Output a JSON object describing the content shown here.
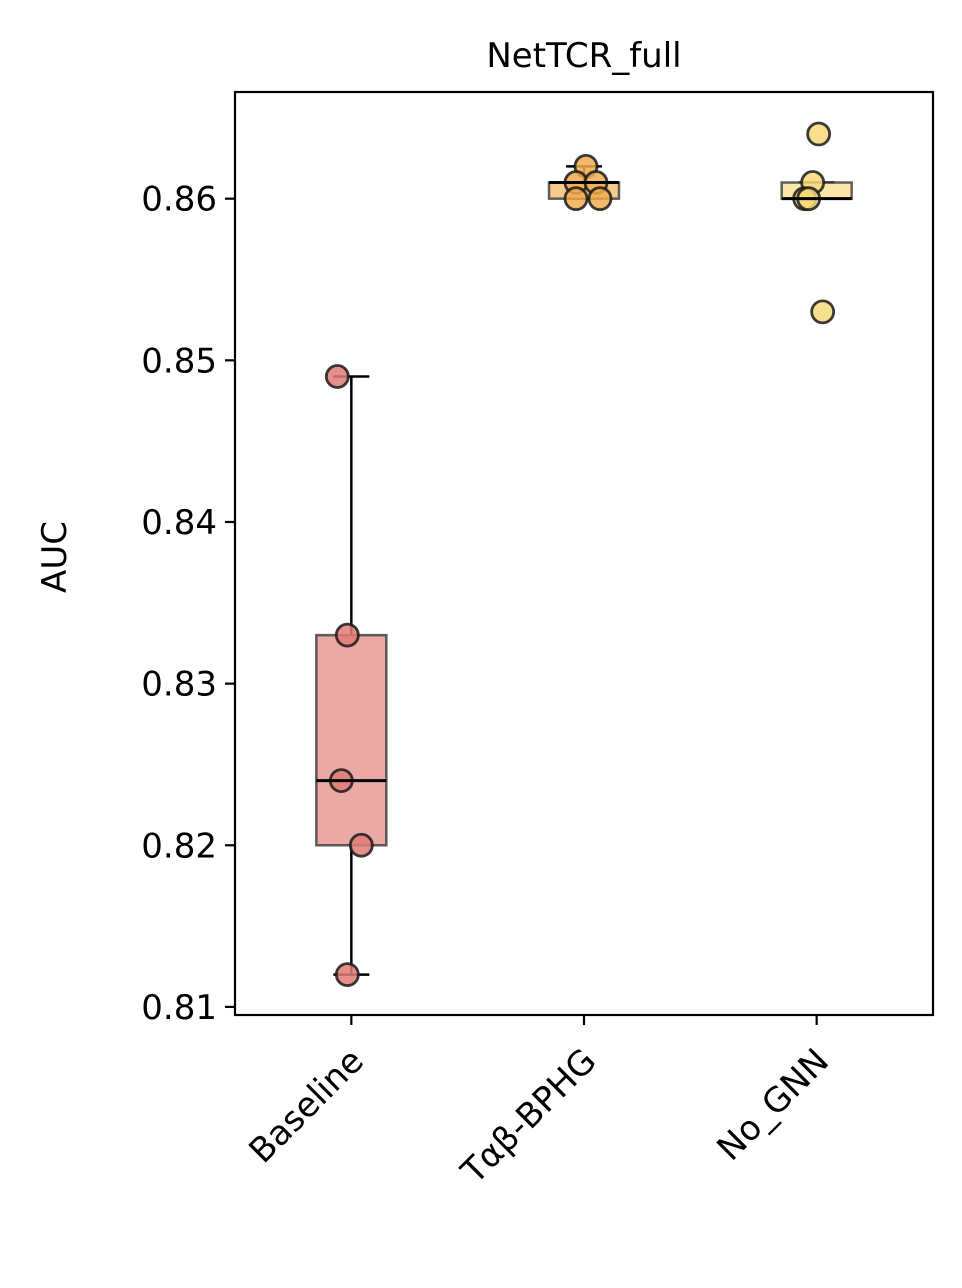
{
  "chart_data": {
    "type": "box",
    "title": "NetTCR_full",
    "xlabel": "",
    "ylabel": "AUC",
    "categories": [
      "Baseline",
      "Tαβ-BPHG",
      "No_GNN"
    ],
    "ylim": [
      0.8095,
      0.8666
    ],
    "yticks": [
      0.81,
      0.82,
      0.83,
      0.84,
      0.85,
      0.86
    ],
    "ytick_labels": [
      "0.81",
      "0.82",
      "0.83",
      "0.84",
      "0.85",
      "0.86"
    ],
    "grid": false,
    "legend": "none",
    "boxes": [
      {
        "category": "Baseline",
        "color": "#e07b76",
        "whisker_low": 0.812,
        "q1": 0.82,
        "median": 0.824,
        "q3": 0.833,
        "whisker_high": 0.849,
        "points": [
          0.849,
          0.833,
          0.824,
          0.82,
          0.812
        ]
      },
      {
        "category": "Tαβ-BPHG",
        "color": "#f1ad4e",
        "whisker_low": 0.86,
        "q1": 0.86,
        "median": 0.861,
        "q3": 0.861,
        "whisker_high": 0.862,
        "points": [
          0.862,
          0.861,
          0.861,
          0.86,
          0.86
        ]
      },
      {
        "category": "No_GNN",
        "color": "#f7d97a",
        "whisker_low": 0.86,
        "q1": 0.86,
        "median": 0.86,
        "q3": 0.861,
        "whisker_high": 0.861,
        "points": [
          0.864,
          0.861,
          0.86,
          0.86,
          0.853
        ]
      }
    ]
  }
}
